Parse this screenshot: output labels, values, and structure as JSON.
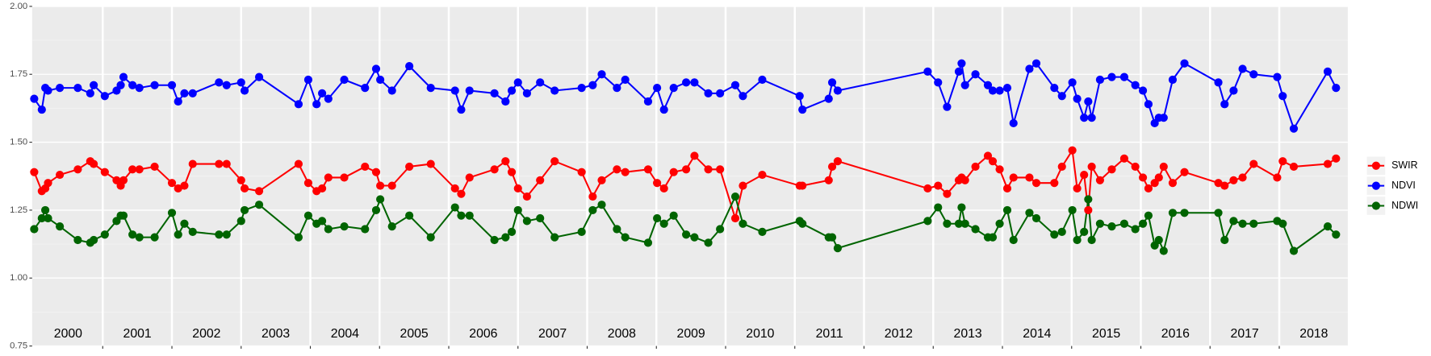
{
  "chart_data": {
    "type": "line",
    "x": [
      2000.01,
      2000.12,
      2000.17,
      2000.21,
      2000.38,
      2000.64,
      2000.82,
      2000.87,
      2001.03,
      2001.2,
      2001.26,
      2001.3,
      2001.43,
      2001.53,
      2001.75,
      2002.0,
      2002.09,
      2002.18,
      2002.3,
      2002.68,
      2002.79,
      2003.0,
      2003.05,
      2003.26,
      2003.83,
      2003.97,
      2004.09,
      2004.17,
      2004.26,
      2004.49,
      2004.79,
      2004.95,
      2005.01,
      2005.18,
      2005.43,
      2005.74,
      2006.09,
      2006.18,
      2006.3,
      2006.66,
      2006.82,
      2006.91,
      2007.0,
      2007.13,
      2007.32,
      2007.53,
      2007.92,
      2008.08,
      2008.21,
      2008.43,
      2008.55,
      2008.88,
      2009.01,
      2009.11,
      2009.25,
      2009.43,
      2009.55,
      2009.75,
      2009.92,
      2010.14,
      2010.25,
      2010.53,
      2011.07,
      2011.11,
      2011.49,
      2011.54,
      2011.62,
      2012.92,
      2013.07,
      2013.2,
      2013.37,
      2013.41,
      2013.46,
      2013.61,
      2013.79,
      2013.86,
      2013.96,
      2014.07,
      2014.16,
      2014.39,
      2014.49,
      2014.75,
      2014.86,
      2015.01,
      2015.08,
      2015.18,
      2015.24,
      2015.29,
      2015.41,
      2015.58,
      2015.76,
      2015.92,
      2016.03,
      2016.11,
      2016.2,
      2016.26,
      2016.33,
      2016.46,
      2016.63,
      2017.12,
      2017.21,
      2017.34,
      2017.47,
      2017.63,
      2017.97,
      2018.05,
      2018.21,
      2018.7,
      2018.82
    ],
    "series": [
      {
        "name": "SWIR",
        "color": "#ff0000",
        "values": [
          1.39,
          1.32,
          1.33,
          1.35,
          1.38,
          1.4,
          1.43,
          1.42,
          1.39,
          1.36,
          1.34,
          1.36,
          1.4,
          1.4,
          1.41,
          1.35,
          1.33,
          1.34,
          1.42,
          1.42,
          1.42,
          1.36,
          1.33,
          1.32,
          1.42,
          1.35,
          1.32,
          1.33,
          1.37,
          1.37,
          1.41,
          1.39,
          1.34,
          1.34,
          1.41,
          1.42,
          1.33,
          1.31,
          1.37,
          1.4,
          1.43,
          1.39,
          1.33,
          1.3,
          1.36,
          1.43,
          1.39,
          1.3,
          1.36,
          1.4,
          1.39,
          1.4,
          1.35,
          1.33,
          1.39,
          1.4,
          1.45,
          1.4,
          1.4,
          1.22,
          1.34,
          1.38,
          1.34,
          1.34,
          1.36,
          1.41,
          1.43,
          1.33,
          1.34,
          1.31,
          1.36,
          1.37,
          1.36,
          1.41,
          1.45,
          1.43,
          1.4,
          1.33,
          1.37,
          1.37,
          1.35,
          1.35,
          1.41,
          1.47,
          1.33,
          1.38,
          1.25,
          1.41,
          1.36,
          1.4,
          1.44,
          1.41,
          1.37,
          1.33,
          1.35,
          1.37,
          1.41,
          1.35,
          1.39,
          1.35,
          1.34,
          1.36,
          1.37,
          1.42,
          1.37,
          1.43,
          1.41,
          1.42,
          1.44
        ]
      },
      {
        "name": "NDVI",
        "color": "#0000ff",
        "values": [
          1.66,
          1.62,
          1.7,
          1.69,
          1.7,
          1.7,
          1.68,
          1.71,
          1.67,
          1.69,
          1.71,
          1.74,
          1.71,
          1.7,
          1.71,
          1.71,
          1.65,
          1.68,
          1.68,
          1.72,
          1.71,
          1.72,
          1.69,
          1.74,
          1.64,
          1.73,
          1.64,
          1.68,
          1.66,
          1.73,
          1.7,
          1.77,
          1.73,
          1.69,
          1.78,
          1.7,
          1.69,
          1.62,
          1.69,
          1.68,
          1.65,
          1.69,
          1.72,
          1.68,
          1.72,
          1.69,
          1.7,
          1.71,
          1.75,
          1.7,
          1.73,
          1.65,
          1.7,
          1.62,
          1.7,
          1.72,
          1.72,
          1.68,
          1.68,
          1.71,
          1.67,
          1.73,
          1.67,
          1.62,
          1.66,
          1.72,
          1.69,
          1.76,
          1.72,
          1.63,
          1.76,
          1.79,
          1.71,
          1.75,
          1.71,
          1.69,
          1.69,
          1.7,
          1.57,
          1.77,
          1.79,
          1.7,
          1.67,
          1.72,
          1.66,
          1.59,
          1.65,
          1.59,
          1.73,
          1.74,
          1.74,
          1.71,
          1.69,
          1.64,
          1.57,
          1.59,
          1.59,
          1.73,
          1.79,
          1.72,
          1.64,
          1.69,
          1.77,
          1.75,
          1.74,
          1.67,
          1.55,
          1.76,
          1.7
        ]
      },
      {
        "name": "NDWI",
        "color": "#006400",
        "values": [
          1.18,
          1.22,
          1.25,
          1.22,
          1.19,
          1.14,
          1.13,
          1.14,
          1.16,
          1.21,
          1.23,
          1.23,
          1.16,
          1.15,
          1.15,
          1.24,
          1.16,
          1.2,
          1.17,
          1.16,
          1.16,
          1.21,
          1.25,
          1.27,
          1.15,
          1.23,
          1.2,
          1.21,
          1.18,
          1.19,
          1.18,
          1.25,
          1.29,
          1.19,
          1.23,
          1.15,
          1.26,
          1.23,
          1.23,
          1.14,
          1.15,
          1.17,
          1.25,
          1.21,
          1.22,
          1.15,
          1.17,
          1.25,
          1.27,
          1.18,
          1.15,
          1.13,
          1.22,
          1.2,
          1.23,
          1.16,
          1.15,
          1.13,
          1.18,
          1.3,
          1.2,
          1.17,
          1.21,
          1.2,
          1.15,
          1.15,
          1.11,
          1.21,
          1.26,
          1.2,
          1.2,
          1.26,
          1.2,
          1.18,
          1.15,
          1.15,
          1.2,
          1.25,
          1.14,
          1.24,
          1.22,
          1.16,
          1.17,
          1.25,
          1.14,
          1.17,
          1.29,
          1.14,
          1.2,
          1.19,
          1.2,
          1.18,
          1.2,
          1.23,
          1.12,
          1.14,
          1.1,
          1.24,
          1.24,
          1.24,
          1.14,
          1.21,
          1.2,
          1.2,
          1.21,
          1.2,
          1.1,
          1.19,
          1.16
        ]
      }
    ],
    "xlim": [
      1999.98,
      2018.99
    ],
    "xticks": [
      {
        "value": 2000.5,
        "label": "2000"
      },
      {
        "value": 2001.5,
        "label": "2001"
      },
      {
        "value": 2002.5,
        "label": "2002"
      },
      {
        "value": 2003.5,
        "label": "2003"
      },
      {
        "value": 2004.5,
        "label": "2004"
      },
      {
        "value": 2005.5,
        "label": "2005"
      },
      {
        "value": 2006.5,
        "label": "2006"
      },
      {
        "value": 2007.5,
        "label": "2007"
      },
      {
        "value": 2008.5,
        "label": "2008"
      },
      {
        "value": 2009.5,
        "label": "2009"
      },
      {
        "value": 2010.5,
        "label": "2010"
      },
      {
        "value": 2011.5,
        "label": "2011"
      },
      {
        "value": 2012.5,
        "label": "2012"
      },
      {
        "value": 2013.5,
        "label": "2013"
      },
      {
        "value": 2014.5,
        "label": "2014"
      },
      {
        "value": 2015.5,
        "label": "2015"
      },
      {
        "value": 2016.5,
        "label": "2016"
      },
      {
        "value": 2017.5,
        "label": "2017"
      },
      {
        "value": 2018.5,
        "label": "2018"
      }
    ],
    "ylim": [
      0.75,
      2.0
    ],
    "yticks": [
      0.75,
      {
        "value": 1.0,
        "label": "1.00"
      },
      1.25,
      {
        "value": 1.5,
        "label": "1.50"
      },
      1.75,
      {
        "value": 2.0,
        "label": "2.00"
      }
    ],
    "grid": true,
    "legend": "right"
  }
}
